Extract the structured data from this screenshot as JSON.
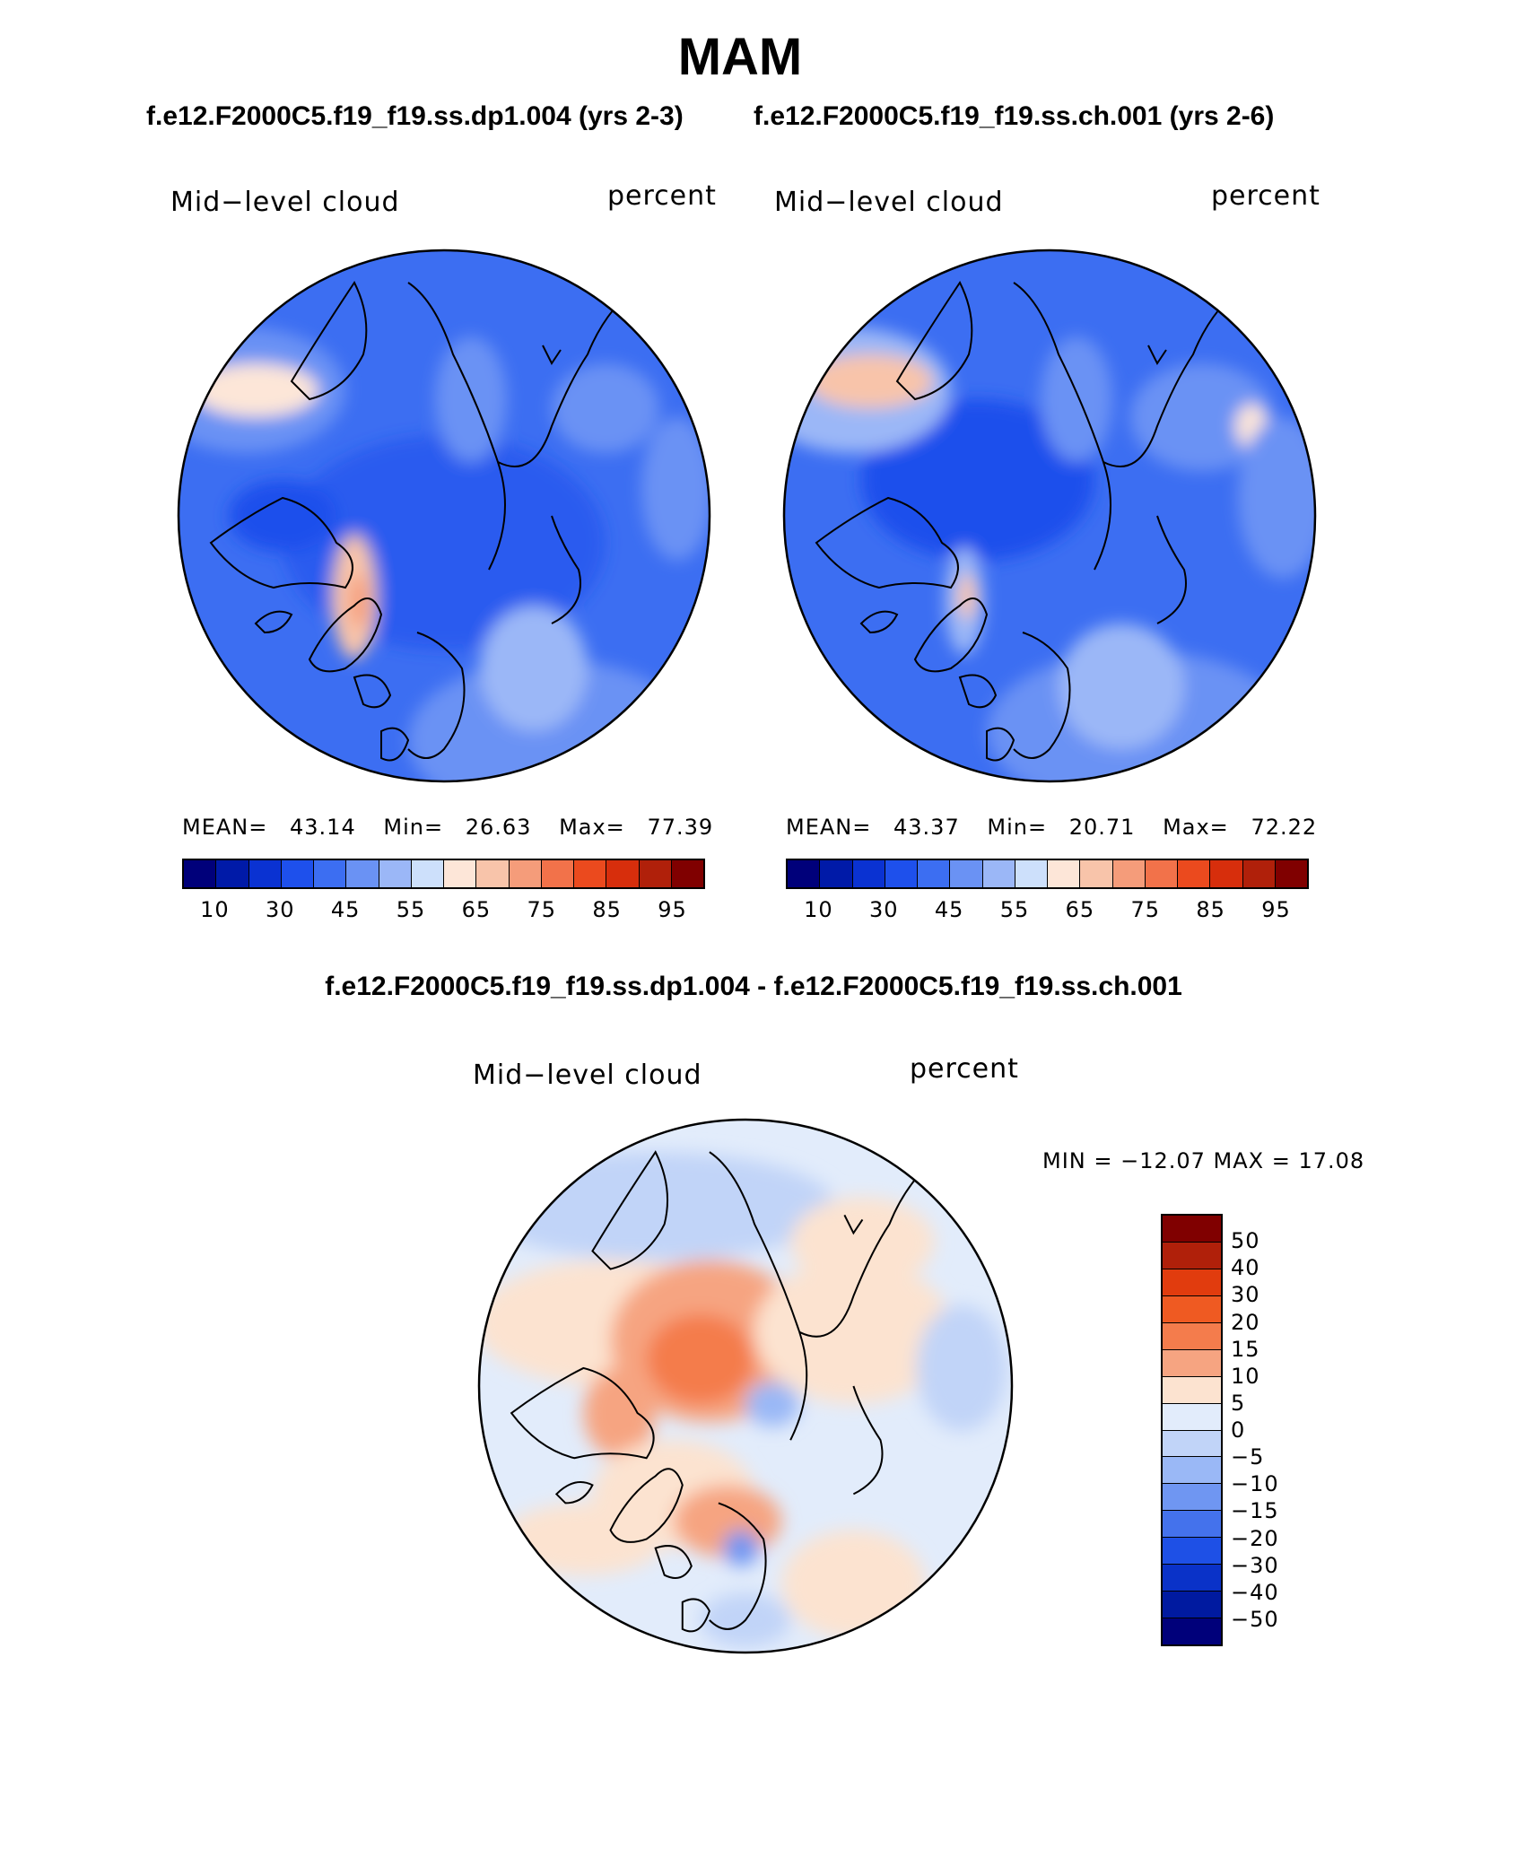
{
  "figure": {
    "season": "MAM",
    "case_titles": [
      "f.e12.F2000C5.f19_f19.ss.dp1.004 (yrs 2-3)",
      "f.e12.F2000C5.f19_f19.ss.ch.001 (yrs 2-6)"
    ],
    "diff_title": "f.e12.F2000C5.f19_f19.ss.dp1.004 - f.e12.F2000C5.f19_f19.ss.ch.001"
  },
  "panels": [
    {
      "variable": "Mid−level cloud",
      "units": "percent",
      "mean_label": "MEAN=",
      "mean": "43.14",
      "min_label": "Min=",
      "min": "26.63",
      "max_label": "Max=",
      "max": "77.39"
    },
    {
      "variable": "Mid−level cloud",
      "units": "percent",
      "mean_label": "MEAN=",
      "mean": "43.37",
      "min_label": "Min=",
      "min": "20.71",
      "max_label": "Max=",
      "max": "72.22"
    }
  ],
  "diff_panel": {
    "variable": "Mid−level cloud",
    "units": "percent",
    "minmax": "MIN = −12.07 MAX =   17.08"
  },
  "abs_colorbar": {
    "colors": [
      "#00007a",
      "#001aa8",
      "#0a32d2",
      "#1e50ec",
      "#3c6ef2",
      "#6a92f4",
      "#9bb7f7",
      "#cde0fb",
      "#fde6d8",
      "#f8c4aa",
      "#f59c7a",
      "#f2724a",
      "#eb4a1e",
      "#d72e0c",
      "#b0200a",
      "#800000"
    ],
    "labels": [
      "10",
      "30",
      "45",
      "55",
      "65",
      "75",
      "85",
      "95"
    ]
  },
  "diff_colorbar": {
    "colors_top_to_bottom": [
      "#800000",
      "#b0200a",
      "#e13c0e",
      "#ef5a22",
      "#f47c4c",
      "#f6a481",
      "#fce3d0",
      "#e2ecfb",
      "#c1d4f8",
      "#9ab8f6",
      "#6f96f2",
      "#4472ec",
      "#1e50e6",
      "#0a32c8",
      "#001aa0",
      "#00007a"
    ],
    "labels": [
      "50",
      "40",
      "30",
      "20",
      "15",
      "10",
      "5",
      "0",
      "−5",
      "−10",
      "−15",
      "−20",
      "−30",
      "−40",
      "−50"
    ]
  }
}
